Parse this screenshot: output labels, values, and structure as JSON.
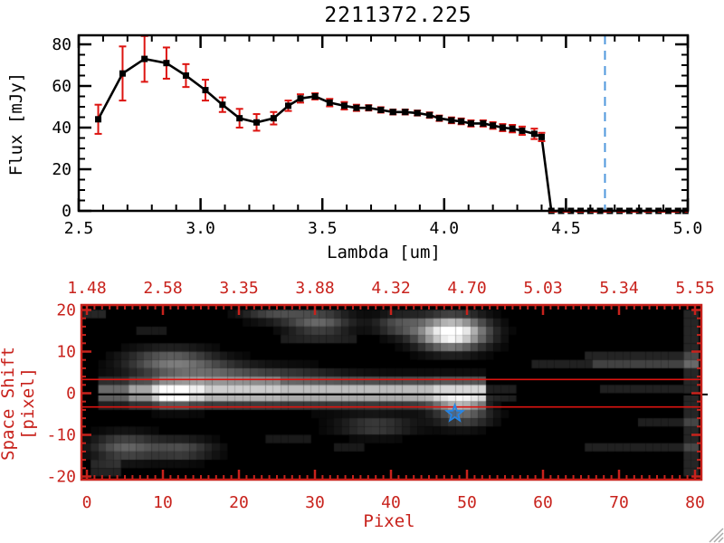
{
  "window": {
    "title": "2211372.225"
  },
  "icons": {
    "resize_grip": "diagonal-lines",
    "star_marker": "five-point-star"
  },
  "colors": {
    "background": "#ffffff",
    "plot_black": "#000000",
    "axis_red": "#c8221c",
    "error_bar_red": "#dd1410",
    "zero_dash_red": "#e01410",
    "vline_blue": "#4f97dd",
    "star_blue": "#2585e6",
    "grip_gray": "#aaaaaa"
  },
  "chart_data": [
    {
      "type": "line",
      "title": "2211372.225",
      "xlabel": "Lambda [um]",
      "ylabel": "Flux [mJy]",
      "xlim": [
        2.5,
        5.0
      ],
      "ylim": [
        0,
        80
      ],
      "x_tick_labels": [
        "2.5",
        "3.0",
        "3.5",
        "4.0",
        "4.5",
        "5.0"
      ],
      "y_tick_labels": [
        "0",
        "20",
        "40",
        "60",
        "80"
      ],
      "marker": "filled-square",
      "points_lambda_flux_err": [
        [
          2.58,
          44,
          7
        ],
        [
          2.68,
          66,
          13
        ],
        [
          2.77,
          73,
          11
        ],
        [
          2.86,
          71,
          7.5
        ],
        [
          2.94,
          65,
          5.5
        ],
        [
          3.02,
          58,
          5
        ],
        [
          3.09,
          51,
          3.5
        ],
        [
          3.16,
          44.5,
          4.5
        ],
        [
          3.23,
          42.5,
          4
        ],
        [
          3.3,
          44.5,
          3
        ],
        [
          3.36,
          50.5,
          2.5
        ],
        [
          3.41,
          54,
          2
        ],
        [
          3.47,
          55,
          1.5
        ],
        [
          3.53,
          52,
          1.8
        ],
        [
          3.59,
          50.5,
          1.8
        ],
        [
          3.64,
          49.5,
          1.5
        ],
        [
          3.69,
          49.5,
          1.3
        ],
        [
          3.74,
          48.5,
          1.3
        ],
        [
          3.79,
          47.5,
          1.2
        ],
        [
          3.84,
          47.5,
          1.2
        ],
        [
          3.89,
          47,
          1.2
        ],
        [
          3.94,
          46,
          1.3
        ],
        [
          3.98,
          44.5,
          1.3
        ],
        [
          4.03,
          43.5,
          1.4
        ],
        [
          4.07,
          43,
          1.4
        ],
        [
          4.11,
          42,
          1.5
        ],
        [
          4.16,
          42,
          1.5
        ],
        [
          4.2,
          41,
          1.6
        ],
        [
          4.24,
          40,
          1.7
        ],
        [
          4.28,
          39.5,
          1.8
        ],
        [
          4.32,
          38.5,
          2
        ],
        [
          4.37,
          37,
          2.5
        ],
        [
          4.4,
          35.5,
          2
        ],
        [
          4.44,
          0,
          0
        ],
        [
          4.48,
          0,
          0
        ],
        [
          4.52,
          0,
          0
        ],
        [
          4.56,
          0,
          0
        ],
        [
          4.6,
          0,
          0
        ],
        [
          4.64,
          0,
          0
        ],
        [
          4.68,
          0,
          0
        ],
        [
          4.72,
          0,
          0
        ],
        [
          4.76,
          0,
          0
        ],
        [
          4.8,
          0,
          0
        ],
        [
          4.84,
          0,
          0
        ],
        [
          4.88,
          0,
          0
        ],
        [
          4.92,
          0,
          0
        ],
        [
          4.96,
          0,
          0
        ],
        [
          4.99,
          0,
          0
        ]
      ],
      "annotations": {
        "vline": {
          "x": 4.66,
          "style": "dashed",
          "color": "#4f97dd"
        },
        "zero_hline": {
          "y": 0,
          "x_from": 4.43,
          "x_to": 5.0,
          "style": "dashed",
          "color": "#e01410"
        }
      }
    },
    {
      "type": "heatmap",
      "xlabel": "Pixel",
      "ylabel": "Space Shift [pixel]",
      "xlim": [
        0,
        80
      ],
      "ylim": [
        -20,
        20
      ],
      "x_tick_labels": [
        "0",
        "10",
        "20",
        "30",
        "40",
        "50",
        "60",
        "70",
        "80"
      ],
      "y_tick_labels": [
        "20",
        "10",
        "0",
        "-10",
        "-20"
      ],
      "top_axis_tick_labels": [
        "1.48",
        "2.58",
        "3.35",
        "3.88",
        "4.32",
        "4.70",
        "5.03",
        "5.34",
        "5.55"
      ],
      "axis_color": "#c8221c",
      "overlays": {
        "aperture_line_shifts": [
          3.3,
          -3.3
        ],
        "trace_line_shift": -0.3,
        "star_marker": {
          "pixel": 48.4,
          "shift": -4.9,
          "color": "#2585e6"
        }
      },
      "intensity_model": {
        "comment": "spectral trace image, estimated intensities 0-1; band=gaussian ridge along shift~0; blobs=[cx_pixel,cy_shift,sigx,sigy,amp]; stripes=[x0,x1,s0,s1,amp]",
        "band": {
          "center_shift": 0.2,
          "sigma_shift": 2.0,
          "segments": [
            [
              2,
              6,
              0.45
            ],
            [
              6,
              9,
              0.7
            ],
            [
              9,
              10,
              0.95
            ],
            [
              10,
              14,
              1.25
            ],
            [
              14,
              16,
              1.0
            ],
            [
              16,
              26,
              0.85
            ],
            [
              26,
              46,
              0.8
            ],
            [
              46,
              53,
              0.9
            ]
          ]
        },
        "blobs": [
          [
            48,
            14.5,
            3.0,
            2.6,
            1.15
          ],
          [
            41,
            16.5,
            2.2,
            1.8,
            0.3
          ],
          [
            30.5,
            17,
            3.0,
            2.0,
            0.4
          ],
          [
            24.5,
            19.5,
            3.0,
            1.5,
            0.28
          ],
          [
            11,
            7.5,
            4.0,
            2.2,
            0.45
          ],
          [
            17,
            5,
            4.0,
            1.8,
            0.25
          ],
          [
            26,
            4.5,
            5.0,
            1.5,
            0.16
          ],
          [
            5,
            -13,
            3.0,
            2.2,
            0.38
          ],
          [
            12.5,
            -13.5,
            3.0,
            1.8,
            0.3
          ],
          [
            38,
            -8,
            3.5,
            1.7,
            0.26
          ],
          [
            49.5,
            -5.5,
            2.6,
            2.0,
            0.33
          ],
          [
            49,
            -2.5,
            2.2,
            1.4,
            0.35
          ]
        ],
        "stripes": [
          [
            65.5,
            80.8,
            8.5,
            10.5,
            0.14
          ],
          [
            67,
            80.8,
            6.5,
            8.5,
            0.13
          ],
          [
            58.5,
            80.8,
            5.5,
            7.2,
            0.13
          ],
          [
            67.5,
            79,
            1,
            3,
            0.13
          ],
          [
            73,
            80.8,
            -7.5,
            -5.5,
            0.12
          ],
          [
            66,
            80.8,
            -14.5,
            -12.5,
            0.13
          ],
          [
            79,
            80.8,
            -20,
            20,
            0.15
          ],
          [
            0,
            3,
            18,
            20,
            0.15
          ],
          [
            7,
            11,
            14,
            16,
            0.1
          ],
          [
            1,
            5,
            -19,
            -16,
            0.13
          ],
          [
            33,
            37,
            -13,
            -11,
            0.1
          ],
          [
            24,
            30,
            -11,
            -9,
            0.1
          ],
          [
            53,
            57,
            -2.5,
            1.5,
            0.12
          ],
          [
            14,
            26,
            3,
            5,
            0.1
          ],
          [
            26,
            36,
            13,
            15,
            0.1
          ]
        ]
      }
    }
  ]
}
